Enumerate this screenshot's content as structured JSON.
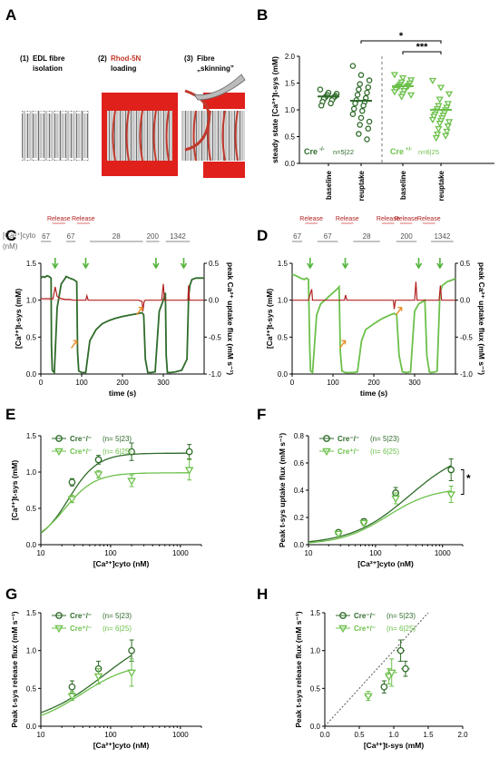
{
  "panels": [
    "A",
    "B",
    "C",
    "D",
    "E",
    "F",
    "G",
    "H"
  ],
  "panel_a": {
    "steps": [
      {
        "number": "(1)",
        "text1": "EDL fibre",
        "text2": "isolation"
      },
      {
        "number": "(2)",
        "text1": "Rhod-5N",
        "text2": "loading"
      },
      {
        "number": "(3)",
        "text1": "Fibre",
        "text2": "„skinning”"
      }
    ],
    "colors": {
      "rhod": "#e0211b",
      "label_rhod": "#c0392b"
    }
  },
  "colors": {
    "ko": "#2f6b2a",
    "het": "#6cc04a",
    "release": "#b22222",
    "release_bar": "#e8a0a0",
    "arrow_up": "#52b33a",
    "arrow_orange": "#e8922e"
  },
  "chart_data": [
    {
      "id": "B",
      "type": "scatter",
      "ylabel": "steady state [Ca²⁺]t-sys (mM)",
      "ylim": [
        0.0,
        2.0
      ],
      "yticks": [
        0.0,
        0.5,
        1.0,
        1.5,
        2.0
      ],
      "categories": [
        "baseline",
        "reuptake",
        "baseline",
        "reuptake"
      ],
      "groups": [
        {
          "name": "Cre-/-",
          "note": "n=5|22",
          "color": "#2f6b2a"
        },
        {
          "name": "Cre+/-",
          "note": "n=6|25",
          "color": "#6cc04a"
        }
      ],
      "points": [
        {
          "category": 0,
          "group": 0,
          "marker": "circle",
          "values": [
            1.38,
            1.32,
            1.3,
            1.28,
            1.26,
            1.25,
            1.24,
            1.23,
            1.22,
            1.2,
            1.18,
            1.15,
            1.12,
            1.08
          ]
        },
        {
          "category": 1,
          "group": 0,
          "marker": "circle",
          "values": [
            1.82,
            1.65,
            1.55,
            1.48,
            1.42,
            1.38,
            1.32,
            1.28,
            1.22,
            1.18,
            1.15,
            1.12,
            1.08,
            1.02,
            0.98,
            0.92,
            0.85,
            0.78,
            0.72,
            0.65,
            0.55,
            0.45
          ]
        },
        {
          "category": 2,
          "group": 1,
          "marker": "triangle",
          "values": [
            1.66,
            1.6,
            1.56,
            1.52,
            1.5,
            1.48,
            1.46,
            1.45,
            1.44,
            1.43,
            1.42,
            1.41,
            1.4,
            1.38,
            1.36,
            1.34,
            1.3,
            1.28,
            1.25
          ]
        },
        {
          "category": 3,
          "group": 1,
          "marker": "triangle",
          "values": [
            1.55,
            1.42,
            1.3,
            1.2,
            1.12,
            1.08,
            1.05,
            1.02,
            1.0,
            0.98,
            0.95,
            0.92,
            0.9,
            0.88,
            0.85,
            0.82,
            0.8,
            0.78,
            0.75,
            0.7,
            0.65,
            0.6,
            0.55,
            0.52,
            0.48
          ]
        }
      ],
      "means": [
        1.25,
        1.17,
        1.44,
        1.0
      ],
      "significance": [
        {
          "from": 1,
          "to": 3,
          "label": "*"
        },
        {
          "from": 2,
          "to": 3,
          "label": "***"
        }
      ]
    },
    {
      "id": "C",
      "type": "line",
      "xlabel": "time (s)",
      "xlim": [
        0,
        400
      ],
      "xticks": [
        0,
        100,
        200,
        300
      ],
      "ylabel_left": "[Ca²⁺]t-sys (mM)",
      "ylim_left": [
        0.0,
        1.5
      ],
      "yticks_left": [
        0.0,
        0.5,
        1.0,
        1.5
      ],
      "ylabel_right": "peak Ca²⁺ uptake flux (mM s⁻¹)",
      "ylim_right": [
        -1.0,
        0.5
      ],
      "yticks_right": [
        -1.0,
        -0.5,
        0.0,
        0.5
      ],
      "cyto_label": "[Ca²⁺]cyto",
      "cyto_unit": "(nM)",
      "release_label": "Release",
      "releases": [
        [
          28,
          60
        ],
        [
          88,
          120
        ]
      ],
      "cyto_segments": [
        {
          "label": "67",
          "x0": 0,
          "x1": 25
        },
        {
          "label": "67",
          "x0": 62,
          "x1": 85
        },
        {
          "label": "28",
          "x0": 120,
          "x1": 250
        },
        {
          "label": "200",
          "x0": 258,
          "x1": 290
        },
        {
          "label": "1342",
          "x0": 306,
          "x1": 365
        }
      ],
      "series": [
        {
          "name": "[Ca²⁺]t-sys",
          "color": "#2f6b2a",
          "x": [
            0,
            5,
            10,
            15,
            20,
            25,
            26,
            28,
            33,
            40,
            50,
            60,
            62,
            70,
            80,
            88,
            90,
            93,
            100,
            110,
            120,
            135,
            150,
            165,
            180,
            200,
            220,
            240,
            248,
            252,
            256,
            262,
            270,
            280,
            290,
            300,
            305,
            307,
            310,
            318,
            330,
            345,
            358,
            362,
            365,
            370,
            380,
            390,
            400
          ],
          "y": [
            1.3,
            1.32,
            1.31,
            1.33,
            1.32,
            1.3,
            0.4,
            0.05,
            0.02,
            0.9,
            1.22,
            1.3,
            1.32,
            1.3,
            1.28,
            1.25,
            0.3,
            0.04,
            0.02,
            0.02,
            0.45,
            0.6,
            0.68,
            0.72,
            0.75,
            0.78,
            0.8,
            0.82,
            0.83,
            0.8,
            0.2,
            0.02,
            0.02,
            0.03,
            0.85,
            1.0,
            1.1,
            0.25,
            0.02,
            0.02,
            0.03,
            0.05,
            0.2,
            1.05,
            1.2,
            1.28,
            1.3,
            1.3,
            1.3
          ]
        },
        {
          "name": "uptake flux",
          "color": "#b22222",
          "axis": "right",
          "x": [
            0,
            20,
            30,
            35,
            40,
            50,
            60,
            70,
            80,
            95,
            100,
            110,
            113,
            116,
            130,
            160,
            200,
            240,
            248,
            250,
            253,
            256,
            270,
            290,
            296,
            300,
            303,
            306,
            320,
            340,
            355,
            360,
            362,
            364,
            366,
            370,
            390,
            400
          ],
          "y": [
            0.02,
            0.02,
            0.02,
            0.18,
            0.05,
            0.02,
            0.01,
            0.01,
            0.0,
            0.0,
            0.0,
            0.0,
            0.06,
            0.0,
            0.0,
            0.0,
            0.0,
            0.0,
            -0.02,
            -0.15,
            -0.02,
            0.0,
            0.0,
            0.0,
            0.0,
            0.22,
            0.0,
            0.0,
            0.0,
            0.0,
            0.0,
            0.0,
            0.2,
            0.0,
            0.0,
            0.0,
            0.0,
            0.0
          ]
        }
      ],
      "green_arrows": [
        35,
        110,
        282,
        350
      ],
      "orange_arrows": [
        [
          88,
          0.45
        ],
        [
          248,
          0.9
        ]
      ]
    },
    {
      "id": "D",
      "type": "line",
      "xlabel": "time (s)",
      "xlim": [
        0,
        400
      ],
      "xticks": [
        0,
        100,
        200,
        300
      ],
      "ylabel_left": "[Ca²⁺]t-sys (mM)",
      "ylim_left": [
        0.0,
        1.5
      ],
      "yticks_left": [
        0.0,
        0.5,
        1.0,
        1.5
      ],
      "ylabel_right": "peak Ca²⁺ uptake flux (mM s⁻¹)",
      "ylim_right": [
        -1.0,
        0.5
      ],
      "yticks_right": [
        -1.0,
        -0.5,
        0.0,
        0.5
      ],
      "release_label": "Release",
      "releases": [
        [
          32,
          62
        ],
        [
          120,
          150
        ],
        [
          220,
          250
        ],
        [
          264,
          294
        ],
        [
          320,
          350
        ]
      ],
      "cyto_segments": [
        {
          "label": "67",
          "x0": 0,
          "x1": 25
        },
        {
          "label": "67",
          "x0": 62,
          "x1": 112
        },
        {
          "label": "28",
          "x0": 150,
          "x1": 215
        },
        {
          "label": "200",
          "x0": 255,
          "x1": 305
        },
        {
          "label": "1342",
          "x0": 340,
          "x1": 395
        }
      ],
      "series": [
        {
          "name": "[Ca²⁺]t-sys",
          "color": "#6cc04a",
          "x": [
            0,
            10,
            20,
            30,
            35,
            40,
            43,
            45,
            50,
            60,
            70,
            80,
            90,
            100,
            110,
            115,
            118,
            122,
            130,
            150,
            160,
            170,
            180,
            200,
            220,
            240,
            250,
            256,
            262,
            270,
            280,
            290,
            300,
            310,
            320,
            325,
            330,
            336,
            340,
            350,
            355,
            362,
            368,
            380,
            395,
            400
          ],
          "y": [
            1.35,
            1.33,
            1.3,
            1.28,
            1.3,
            1.28,
            0.35,
            0.04,
            0.02,
            0.8,
            0.95,
            1.0,
            1.05,
            1.1,
            1.15,
            1.18,
            0.3,
            0.04,
            0.02,
            0.02,
            0.03,
            0.45,
            0.6,
            0.68,
            0.75,
            0.8,
            0.82,
            0.8,
            0.25,
            0.03,
            0.02,
            0.03,
            0.85,
            0.95,
            0.98,
            1.0,
            0.25,
            0.03,
            0.02,
            0.03,
            0.04,
            1.1,
            1.2,
            1.25,
            1.28,
            1.3
          ]
        },
        {
          "name": "uptake flux",
          "color": "#b22222",
          "axis": "right",
          "x": [
            0,
            40,
            45,
            48,
            50,
            60,
            100,
            120,
            128,
            131,
            134,
            140,
            200,
            240,
            248,
            250,
            253,
            256,
            280,
            300,
            303,
            306,
            310,
            340,
            358,
            360,
            363,
            366,
            370,
            400
          ],
          "y": [
            0.0,
            0.0,
            0.1,
            0.15,
            0.0,
            0.0,
            0.0,
            0.0,
            0.0,
            0.07,
            0.0,
            0.0,
            0.0,
            0.0,
            0.0,
            -0.12,
            0.0,
            0.0,
            0.0,
            0.0,
            0.25,
            0.0,
            0.0,
            0.0,
            0.0,
            0.0,
            0.2,
            0.0,
            0.0,
            0.0
          ]
        }
      ],
      "green_arrows": [
        44,
        130,
        310,
        362
      ],
      "orange_arrows": [
        [
          130,
          0.45
        ],
        [
          268,
          0.9
        ]
      ]
    },
    {
      "id": "E",
      "type": "scatter",
      "xlabel": "[Ca²⁺]cyto (nM)",
      "xscale": "log",
      "xlim": [
        10,
        2000
      ],
      "xticks": [
        10,
        100,
        1000
      ],
      "ylabel": "[Ca²⁺]t-sys (mM)",
      "ylim": [
        0.0,
        1.5
      ],
      "yticks": [
        0.0,
        0.5,
        1.0,
        1.5
      ],
      "series": [
        {
          "name": "Cre⁻/⁻",
          "note": "(n= 5|23)",
          "marker": "circle",
          "color": "#2f6b2a",
          "x": [
            28,
            67,
            200,
            1342
          ],
          "y": [
            0.86,
            1.17,
            1.28,
            1.28
          ],
          "err": [
            0.05,
            0.06,
            0.12,
            0.1
          ],
          "fit": {
            "top": 1.26,
            "ec50": 25,
            "n": 2.1
          }
        },
        {
          "name": "Cre⁺/⁻",
          "note": "(n= 6|25)",
          "marker": "triangle",
          "color": "#6cc04a",
          "x": [
            28,
            67,
            200,
            1342
          ],
          "y": [
            0.63,
            0.97,
            0.88,
            1.03
          ],
          "err": [
            0.05,
            0.05,
            0.08,
            0.14
          ],
          "fit": {
            "top": 0.99,
            "ec50": 22,
            "n": 2.0
          }
        }
      ]
    },
    {
      "id": "F",
      "type": "scatter",
      "xlabel": "[Ca²⁺]cyto (nM)",
      "xscale": "log",
      "xlim": [
        10,
        2000
      ],
      "xticks": [
        10,
        100,
        1000
      ],
      "ylabel": "Peak t-sys uptake flux (mM s⁻¹)",
      "ylim": [
        0.0,
        0.8
      ],
      "yticks": [
        0.0,
        0.2,
        0.4,
        0.6,
        0.8
      ],
      "annotation": "*",
      "series": [
        {
          "name": "Cre⁻/⁻",
          "note": "(n= 5|23)",
          "marker": "circle",
          "color": "#2f6b2a",
          "x": [
            28,
            67,
            200,
            1342
          ],
          "y": [
            0.09,
            0.17,
            0.38,
            0.55
          ],
          "err": [
            0.01,
            0.02,
            0.04,
            0.08
          ],
          "fit": {
            "top": 0.72,
            "ec50": 320,
            "n": 1.0
          }
        },
        {
          "name": "Cre⁺/⁻",
          "note": "(n= 6|25)",
          "marker": "triangle",
          "color": "#6cc04a",
          "x": [
            28,
            67,
            200,
            1342
          ],
          "y": [
            0.08,
            0.16,
            0.34,
            0.37
          ],
          "err": [
            0.01,
            0.02,
            0.04,
            0.06
          ],
          "fit": {
            "top": 0.42,
            "ec50": 150,
            "n": 1.25
          }
        }
      ]
    },
    {
      "id": "G",
      "type": "scatter",
      "xlabel": "[Ca²⁺]cyto (nM)",
      "xscale": "log",
      "xlim": [
        10,
        2000
      ],
      "xticks": [
        10,
        100,
        1000
      ],
      "ylabel": "Peak t-sys release flux (mM s⁻¹)",
      "ylim": [
        0.0,
        1.5
      ],
      "yticks": [
        0.0,
        0.5,
        1.0,
        1.5
      ],
      "series": [
        {
          "name": "Cre⁻/⁻",
          "note": "(n= 5|23)",
          "marker": "circle",
          "color": "#2f6b2a",
          "x": [
            28,
            67,
            200
          ],
          "y": [
            0.52,
            0.76,
            1.0
          ],
          "err": [
            0.08,
            0.1,
            0.14
          ],
          "fit": {
            "top": 1.35,
            "ec50": 80,
            "n": 0.9
          }
        },
        {
          "name": "Cre⁺/⁻",
          "note": "(n= 6|25)",
          "marker": "triangle",
          "color": "#6cc04a",
          "x": [
            28,
            67,
            200
          ],
          "y": [
            0.4,
            0.66,
            0.71
          ],
          "err": [
            0.06,
            0.1,
            0.18
          ],
          "fit": {
            "top": 0.85,
            "ec50": 38,
            "n": 1.2
          }
        }
      ]
    },
    {
      "id": "H",
      "type": "scatter",
      "xlabel": "[Ca²⁺]t-sys (mM)",
      "xlim": [
        0.0,
        2.0
      ],
      "xticks": [
        0.0,
        0.5,
        1.0,
        1.5,
        2.0
      ],
      "ylabel": "Peak t-sys release flux (mM s⁻¹)",
      "ylim": [
        0.0,
        1.5
      ],
      "yticks": [
        0.0,
        0.5,
        1.0,
        1.5
      ],
      "identity_line": true,
      "series": [
        {
          "name": "Cre⁻/⁻",
          "note": "(n= 5|23)",
          "marker": "circle",
          "color": "#2f6b2a",
          "x": [
            0.86,
            1.1,
            1.17
          ],
          "y": [
            0.52,
            1.0,
            0.76
          ],
          "xerr": [
            0.05,
            0.06,
            0.06
          ],
          "err": [
            0.08,
            0.14,
            0.1
          ]
        },
        {
          "name": "Cre⁺/⁻",
          "note": "(n= 6|25)",
          "marker": "triangle",
          "color": "#6cc04a",
          "x": [
            0.63,
            0.93,
            0.97
          ],
          "y": [
            0.4,
            0.66,
            0.71
          ],
          "xerr": [
            0.05,
            0.05,
            0.08
          ],
          "err": [
            0.06,
            0.1,
            0.18
          ]
        }
      ]
    }
  ]
}
